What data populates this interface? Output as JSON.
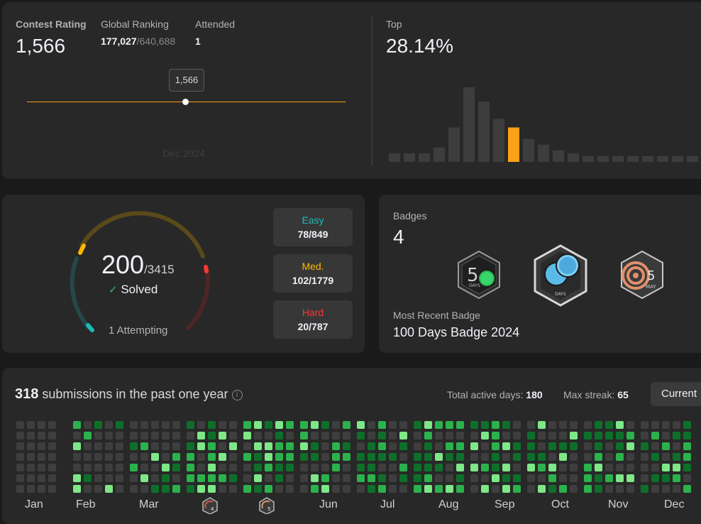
{
  "contest": {
    "rating_label": "Contest Rating",
    "rating_value": "1,566",
    "ranking_label": "Global Ranking",
    "ranking_value": "177,027",
    "ranking_total": "/640,688",
    "attended_label": "Attended",
    "attended_value": "1",
    "tooltip_value": "1,566",
    "date_label": "Dec 2024",
    "top_label": "Top",
    "top_value": "28.14%"
  },
  "histogram": {
    "values": [
      3,
      3,
      3,
      5,
      12,
      26,
      21,
      15,
      12,
      8,
      6,
      4,
      3,
      2,
      2,
      2,
      2,
      2,
      2,
      2,
      2,
      2
    ],
    "highlight_index": 8,
    "colors": {
      "bar": "#3d3d3d",
      "highlight": "#ffa116"
    }
  },
  "solved": {
    "solved_count": "200",
    "total": "/3415",
    "solved_label": "Solved",
    "attempting_label": "1 Attempting",
    "easy_label": "Easy",
    "easy_value": "78/849",
    "medium_label": "Med.",
    "medium_value": "102/1779",
    "hard_label": "Hard",
    "hard_value": "20/787",
    "colors": {
      "easy": "#1cbaba",
      "medium": "#ffb700",
      "hard": "#f63737"
    }
  },
  "badges": {
    "label": "Badges",
    "count": "4",
    "recent_label": "Most Recent Badge",
    "recent_name": "100 Days Badge 2024",
    "badge_icons": [
      "50-days-badge-icon",
      "100-days-badge-icon",
      "may-badge-icon"
    ],
    "badge_50_text": "DAYS",
    "badge_100_text": "DAYS",
    "badge_may_number": "5",
    "badge_may_text": "MAY"
  },
  "submissions": {
    "count": "318",
    "label": "submissions in the past one year",
    "active_days_label": "Total active days:",
    "active_days_value": "180",
    "max_streak_label": "Max streak:",
    "max_streak_value": "65",
    "current_button": "Current",
    "months": [
      "Jan",
      "Feb",
      "Mar",
      "Apr",
      "May",
      "Jun",
      "Jul",
      "Aug",
      "Sep",
      "Oct",
      "Nov",
      "Dec"
    ],
    "apr_badge_number": "4",
    "may_badge_number": "5",
    "colors": {
      "empty": "#3e3e3e",
      "l1": "#0e6f2a",
      "l2": "#2bb24c",
      "l3": "#7ee787"
    }
  }
}
